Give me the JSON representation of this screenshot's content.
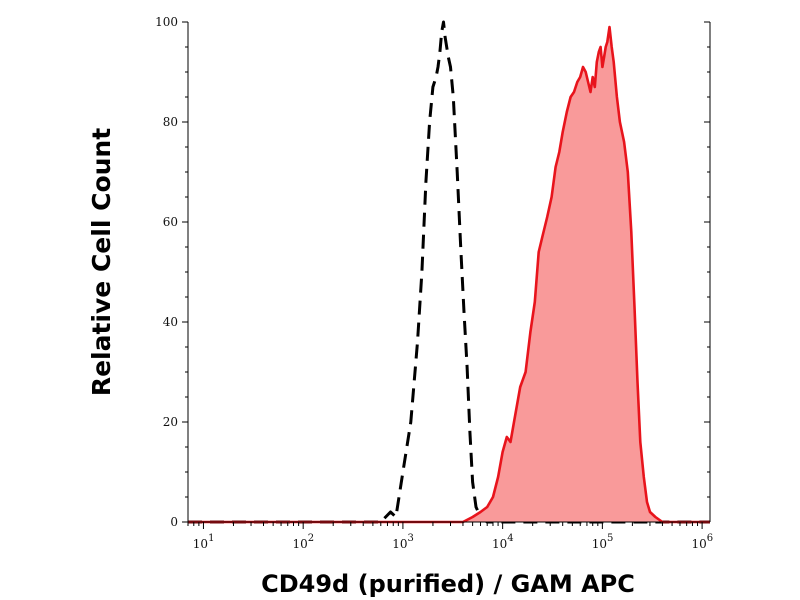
{
  "chart_data": {
    "type": "area",
    "xlabel": "CD49d (purified) / GAM APC",
    "ylabel": "Relative Cell Count",
    "x_scale": "log",
    "xlim": [
      7,
      1200000
    ],
    "ylim": [
      0,
      100
    ],
    "x_ticks": [
      {
        "base": "10",
        "exp": "1",
        "value": 10
      },
      {
        "base": "10",
        "exp": "2",
        "value": 100
      },
      {
        "base": "10",
        "exp": "3",
        "value": 1000
      },
      {
        "base": "10",
        "exp": "4",
        "value": 10000
      },
      {
        "base": "10",
        "exp": "5",
        "value": 100000
      },
      {
        "base": "10",
        "exp": "6",
        "value": 1000000
      }
    ],
    "y_ticks": [
      {
        "label": "0",
        "value": 0
      },
      {
        "label": "20",
        "value": 20
      },
      {
        "label": "40",
        "value": 40
      },
      {
        "label": "60",
        "value": 60
      },
      {
        "label": "80",
        "value": 80
      },
      {
        "label": "100",
        "value": 100
      }
    ],
    "grid": false,
    "series": [
      {
        "style": "dashed",
        "color": "#000000",
        "points": [
          [
            7,
            0
          ],
          [
            600,
            0
          ],
          [
            750,
            2
          ],
          [
            850,
            1
          ],
          [
            1000,
            10
          ],
          [
            1200,
            20
          ],
          [
            1400,
            36
          ],
          [
            1550,
            50
          ],
          [
            1700,
            68
          ],
          [
            1850,
            80
          ],
          [
            2000,
            87
          ],
          [
            2150,
            89
          ],
          [
            2250,
            91
          ],
          [
            2350,
            94
          ],
          [
            2450,
            98
          ],
          [
            2550,
            100
          ],
          [
            2650,
            97
          ],
          [
            2850,
            93
          ],
          [
            3000,
            91
          ],
          [
            3200,
            85
          ],
          [
            3500,
            70
          ],
          [
            3800,
            55
          ],
          [
            4100,
            42
          ],
          [
            4400,
            31
          ],
          [
            4700,
            18
          ],
          [
            5000,
            8
          ],
          [
            5400,
            3
          ],
          [
            6000,
            1
          ],
          [
            7000,
            0
          ],
          [
            1200000,
            0
          ]
        ]
      },
      {
        "style": "filled",
        "color": "#e8141c",
        "fill": "#f99a9a",
        "points": [
          [
            7,
            0
          ],
          [
            4000,
            0
          ],
          [
            5000,
            1
          ],
          [
            6000,
            2
          ],
          [
            7000,
            3
          ],
          [
            8000,
            5
          ],
          [
            9000,
            9
          ],
          [
            10000,
            14
          ],
          [
            11000,
            17
          ],
          [
            12000,
            16
          ],
          [
            13000,
            20
          ],
          [
            15000,
            27
          ],
          [
            17000,
            30
          ],
          [
            19000,
            38
          ],
          [
            21000,
            44
          ],
          [
            23000,
            54
          ],
          [
            25000,
            57
          ],
          [
            28000,
            61
          ],
          [
            31000,
            65
          ],
          [
            34000,
            71
          ],
          [
            37000,
            74
          ],
          [
            40000,
            78
          ],
          [
            44000,
            82
          ],
          [
            48000,
            85
          ],
          [
            52000,
            86
          ],
          [
            56000,
            88
          ],
          [
            60000,
            89
          ],
          [
            64000,
            91
          ],
          [
            68000,
            90
          ],
          [
            72000,
            88
          ],
          [
            76000,
            86
          ],
          [
            80000,
            89
          ],
          [
            84000,
            87
          ],
          [
            88000,
            92
          ],
          [
            92000,
            94
          ],
          [
            96000,
            95
          ],
          [
            100000,
            91
          ],
          [
            104000,
            93
          ],
          [
            108000,
            95
          ],
          [
            112000,
            96
          ],
          [
            118000,
            99
          ],
          [
            124000,
            95
          ],
          [
            130000,
            92
          ],
          [
            140000,
            85
          ],
          [
            150000,
            80
          ],
          [
            165000,
            76
          ],
          [
            180000,
            70
          ],
          [
            195000,
            58
          ],
          [
            210000,
            43
          ],
          [
            225000,
            28
          ],
          [
            240000,
            16
          ],
          [
            260000,
            9
          ],
          [
            280000,
            4
          ],
          [
            300000,
            2
          ],
          [
            340000,
            1
          ],
          [
            400000,
            0
          ],
          [
            1200000,
            0
          ]
        ]
      }
    ]
  }
}
